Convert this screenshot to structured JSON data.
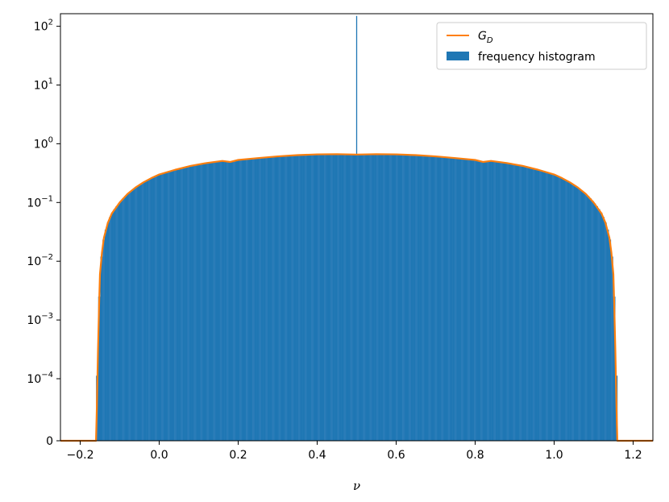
{
  "chart_data": {
    "type": "bar",
    "xlabel": "ν",
    "ylabel": "",
    "xlim": [
      -0.25,
      1.25
    ],
    "y_scale": "symlog",
    "y_linthresh": 0.0001,
    "ylim": [
      0,
      1000
    ],
    "x_ticks": [
      -0.2,
      0.0,
      0.2,
      0.4,
      0.6,
      0.8,
      1.0,
      1.2
    ],
    "x_tick_labels": [
      "−0.2",
      "0.0",
      "0.2",
      "0.4",
      "0.6",
      "0.8",
      "1.0",
      "1.2"
    ],
    "y_ticks": [
      {
        "value": 0,
        "base": "0",
        "exp": ""
      },
      {
        "value": 0.0001,
        "base": "10",
        "exp": "−4"
      },
      {
        "value": 0.001,
        "base": "10",
        "exp": "−3"
      },
      {
        "value": 0.01,
        "base": "10",
        "exp": "−2"
      },
      {
        "value": 0.1,
        "base": "10",
        "exp": "−1"
      },
      {
        "value": 1,
        "base": "10",
        "exp": "0"
      },
      {
        "value": 10,
        "base": "10",
        "exp": "1"
      },
      {
        "value": 100,
        "base": "10",
        "exp": "2"
      }
    ],
    "grid": false,
    "legend": {
      "placement": "top-right",
      "entries": [
        {
          "label_main": "G",
          "label_sub": "D",
          "kind": "line",
          "color": "#ff7f0e"
        },
        {
          "label_main": "frequency histogram",
          "label_sub": "",
          "kind": "bar",
          "color": "#1f77b4"
        }
      ]
    },
    "series": [
      {
        "kind": "line",
        "color": "#ff7f0e",
        "x": [
          -0.25,
          -0.16,
          -0.158,
          -0.155,
          -0.152,
          -0.15,
          -0.145,
          -0.14,
          -0.13,
          -0.12,
          -0.1,
          -0.08,
          -0.06,
          -0.04,
          -0.02,
          0.0,
          0.04,
          0.08,
          0.12,
          0.16,
          0.18,
          0.2,
          0.25,
          0.3,
          0.35,
          0.4,
          0.45,
          0.5,
          0.55,
          0.6,
          0.65,
          0.7,
          0.75,
          0.8,
          0.82,
          0.84,
          0.88,
          0.92,
          0.96,
          1.0,
          1.02,
          1.04,
          1.06,
          1.08,
          1.1,
          1.12,
          1.13,
          1.14,
          1.145,
          1.15,
          1.152,
          1.155,
          1.158,
          1.16,
          1.25
        ],
        "y": [
          0,
          0,
          5e-05,
          0.0003,
          0.002,
          0.006,
          0.014,
          0.025,
          0.045,
          0.065,
          0.1,
          0.14,
          0.18,
          0.22,
          0.26,
          0.3,
          0.36,
          0.42,
          0.47,
          0.51,
          0.49,
          0.53,
          0.57,
          0.61,
          0.64,
          0.66,
          0.665,
          0.655,
          0.665,
          0.66,
          0.64,
          0.61,
          0.57,
          0.53,
          0.49,
          0.51,
          0.47,
          0.42,
          0.36,
          0.3,
          0.26,
          0.22,
          0.18,
          0.14,
          0.1,
          0.065,
          0.045,
          0.025,
          0.014,
          0.006,
          0.002,
          0.0003,
          5e-05,
          0,
          0
        ]
      },
      {
        "kind": "histogram",
        "color": "#1f77b4",
        "range": [
          -0.16,
          1.16
        ],
        "follows": "G_D"
      },
      {
        "kind": "spike",
        "color": "#1f77b4",
        "x": 0.5,
        "y": 150
      }
    ]
  }
}
